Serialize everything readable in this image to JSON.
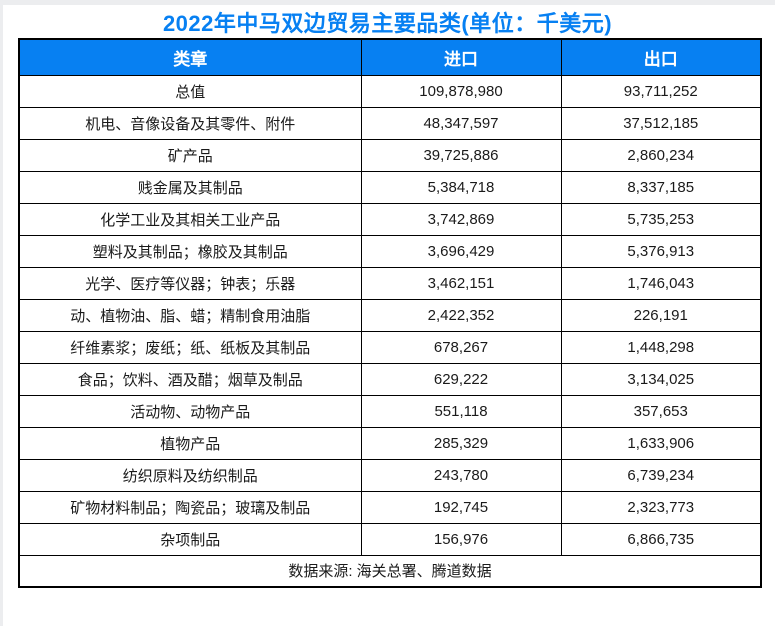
{
  "title": "2022年中马双边贸易主要品类(单位：千美元)",
  "colors": {
    "accent_blue": "#0780f2",
    "border_black": "#000000",
    "header_text": "#ffffff"
  },
  "table": {
    "columns": [
      "类章",
      "进口",
      "出口"
    ],
    "rows": [
      {
        "category": "总值",
        "import": "109,878,980",
        "export": "93,711,252"
      },
      {
        "category": "机电、音像设备及其零件、附件",
        "import": "48,347,597",
        "export": "37,512,185"
      },
      {
        "category": "矿产品",
        "import": "39,725,886",
        "export": "2,860,234"
      },
      {
        "category": "贱金属及其制品",
        "import": "5,384,718",
        "export": "8,337,185"
      },
      {
        "category": "化学工业及其相关工业产品",
        "import": "3,742,869",
        "export": "5,735,253"
      },
      {
        "category": "塑料及其制品；橡胶及其制品",
        "import": "3,696,429",
        "export": "5,376,913"
      },
      {
        "category": "光学、医疗等仪器；钟表；乐器",
        "import": "3,462,151",
        "export": "1,746,043"
      },
      {
        "category": "动、植物油、脂、蜡；精制食用油脂",
        "import": "2,422,352",
        "export": "226,191"
      },
      {
        "category": "纤维素浆；废纸；纸、纸板及其制品",
        "import": "678,267",
        "export": "1,448,298"
      },
      {
        "category": "食品；饮料、酒及醋；烟草及制品",
        "import": "629,222",
        "export": "3,134,025"
      },
      {
        "category": "活动物、动物产品",
        "import": "551,118",
        "export": "357,653"
      },
      {
        "category": "植物产品",
        "import": "285,329",
        "export": "1,633,906"
      },
      {
        "category": "纺织原料及纺织制品",
        "import": "243,780",
        "export": "6,739,234"
      },
      {
        "category": "矿物材料制品；陶瓷品；玻璃及制品",
        "import": "192,745",
        "export": "2,323,773"
      },
      {
        "category": "杂项制品",
        "import": "156,976",
        "export": "6,866,735"
      }
    ],
    "source_note": "数据来源: 海关总署、腾道数据"
  },
  "chart_data": {
    "type": "table",
    "title": "2022年中马双边贸易主要品类(单位：千美元)",
    "unit": "千美元",
    "categories": [
      "总值",
      "机电、音像设备及其零件、附件",
      "矿产品",
      "贱金属及其制品",
      "化学工业及其相关工业产品",
      "塑料及其制品；橡胶及其制品",
      "光学、医疗等仪器；钟表；乐器",
      "动、植物油、脂、蜡；精制食用油脂",
      "纤维素浆；废纸；纸、纸板及其制品",
      "食品；饮料、酒及醋；烟草及制品",
      "活动物、动物产品",
      "植物产品",
      "纺织原料及纺织制品",
      "矿物材料制品；陶瓷品；玻璃及制品",
      "杂项制品"
    ],
    "series": [
      {
        "name": "进口",
        "values": [
          109878980,
          48347597,
          39725886,
          5384718,
          3742869,
          3696429,
          3462151,
          2422352,
          678267,
          629222,
          551118,
          285329,
          243780,
          192745,
          156976
        ]
      },
      {
        "name": "出口",
        "values": [
          93711252,
          37512185,
          2860234,
          8337185,
          5735253,
          5376913,
          1746043,
          226191,
          1448298,
          3134025,
          357653,
          1633906,
          6739234,
          2323773,
          6866735
        ]
      }
    ],
    "source": "数据来源: 海关总署、腾道数据"
  }
}
